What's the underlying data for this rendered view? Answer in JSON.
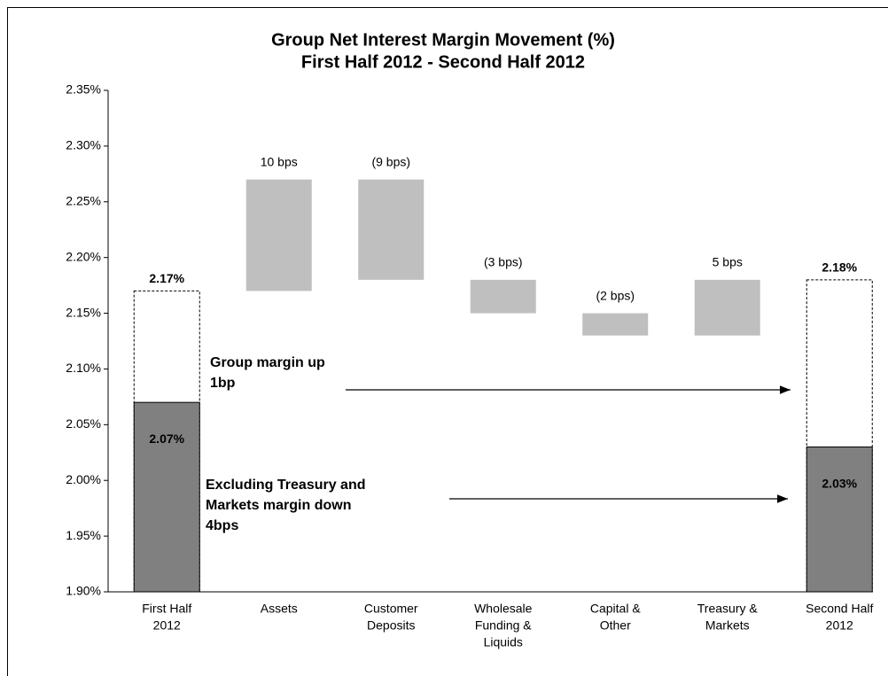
{
  "chart_data": {
    "type": "waterfall",
    "title": "Group Net Interest Margin Movement (%)",
    "subtitle": "First Half 2012 - Second Half 2012",
    "categories": [
      [
        "First Half",
        "2012"
      ],
      [
        "Assets"
      ],
      [
        "Customer",
        "Deposits"
      ],
      [
        "Wholesale",
        "Funding &",
        "Liquids"
      ],
      [
        "Capital &",
        "Other"
      ],
      [
        "Treasury &",
        "Markets"
      ],
      [
        "Second Half",
        "2012"
      ]
    ],
    "measure": [
      "total",
      "relative",
      "relative",
      "relative",
      "relative",
      "relative",
      "total"
    ],
    "values": [
      2.17,
      0.1,
      -0.09,
      -0.03,
      -0.02,
      0.05,
      2.18
    ],
    "value_labels": [
      "2.17%",
      "10 bps",
      "(9 bps)",
      "(3 bps)",
      "(2 bps)",
      "5 bps",
      "2.18%"
    ],
    "inner_values": [
      2.07,
      null,
      null,
      null,
      null,
      null,
      2.03
    ],
    "inner_value_labels": [
      "2.07%",
      null,
      null,
      null,
      null,
      null,
      "2.03%"
    ],
    "step_color": "#bfbfbf",
    "inner_color": "#808080",
    "ylim": [
      1.9,
      2.35
    ],
    "yticks": [
      {
        "value": 1.9,
        "label": "1.90%"
      },
      {
        "value": 1.95,
        "label": "1.95%"
      },
      {
        "value": 2.0,
        "label": "2.00%"
      },
      {
        "value": 2.05,
        "label": "2.05%"
      },
      {
        "value": 2.1,
        "label": "2.10%"
      },
      {
        "value": 2.15,
        "label": "2.15%"
      },
      {
        "value": 2.2,
        "label": "2.20%"
      },
      {
        "value": 2.25,
        "label": "2.25%"
      },
      {
        "value": 2.3,
        "label": "2.30%"
      },
      {
        "value": 2.35,
        "label": "2.35%"
      }
    ],
    "annotations": [
      {
        "lines": [
          "Group margin up",
          "1bp"
        ]
      },
      {
        "lines": [
          "Excluding Treasury and",
          "Markets margin down",
          "4bps"
        ]
      }
    ]
  }
}
